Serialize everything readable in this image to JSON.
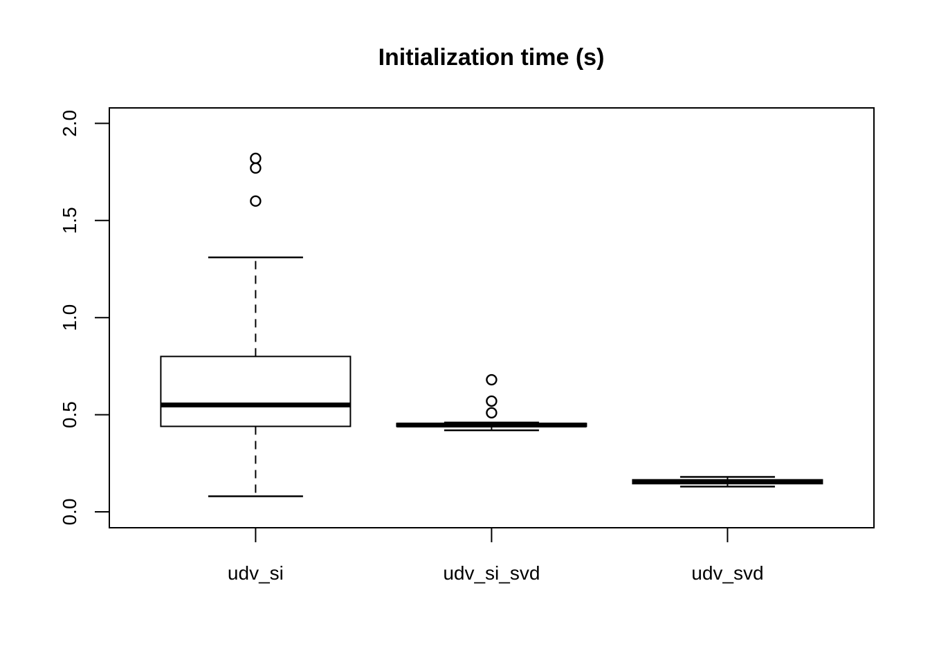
{
  "chart_data": {
    "type": "boxplot",
    "title": "Initialization time (s)",
    "xlabel": "",
    "ylabel": "",
    "categories": [
      "udv_si",
      "udv_si_svd",
      "udv_svd"
    ],
    "ylim": [
      0.0,
      2.0
    ],
    "yticks": [
      0.0,
      0.5,
      1.0,
      1.5,
      2.0
    ],
    "ytick_labels": [
      "0.0",
      "0.5",
      "1.0",
      "1.5",
      "2.0"
    ],
    "grid": false,
    "legend_position": "none",
    "orientation": "vertical",
    "boxes": [
      {
        "category": "udv_si",
        "whisker_low": 0.08,
        "q1": 0.44,
        "median": 0.55,
        "q3": 0.8,
        "whisker_high": 1.31,
        "outliers": [
          1.6,
          1.77,
          1.82
        ]
      },
      {
        "category": "udv_si_svd",
        "whisker_low": 0.42,
        "q1": 0.44,
        "median": 0.447,
        "q3": 0.455,
        "whisker_high": 0.46,
        "outliers": [
          0.51,
          0.57,
          0.68
        ]
      },
      {
        "category": "udv_svd",
        "whisker_low": 0.13,
        "q1": 0.145,
        "median": 0.155,
        "q3": 0.165,
        "whisker_high": 0.18,
        "outliers": []
      }
    ],
    "colors": {
      "stroke": "#000000",
      "box_fill": "#ffffff",
      "background": "#ffffff"
    }
  }
}
